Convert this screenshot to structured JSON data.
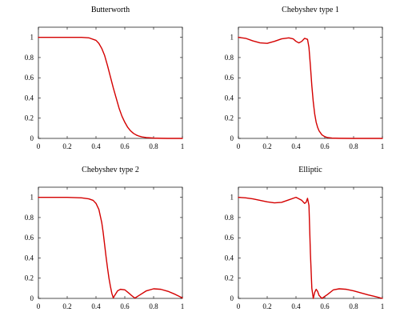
{
  "chart_data": [
    {
      "type": "line",
      "title": "Butterworth",
      "xlim": [
        0,
        1
      ],
      "ylim": [
        0,
        1.1
      ],
      "x_ticks": [
        "0",
        "0.2",
        "0.4",
        "0.6",
        "0.8",
        "1"
      ],
      "y_ticks": [
        "0",
        "0.2",
        "0.4",
        "0.6",
        "0.8",
        "1"
      ],
      "grid": false,
      "color": "#d40000",
      "x": [
        0,
        0.1,
        0.2,
        0.3,
        0.35,
        0.4,
        0.42,
        0.44,
        0.46,
        0.48,
        0.5,
        0.52,
        0.54,
        0.56,
        0.58,
        0.6,
        0.62,
        0.64,
        0.66,
        0.68,
        0.7,
        0.72,
        0.75,
        0.8,
        0.85,
        0.9,
        1.0
      ],
      "y": [
        1,
        1,
        1,
        1,
        0.995,
        0.97,
        0.94,
        0.89,
        0.82,
        0.72,
        0.61,
        0.5,
        0.4,
        0.3,
        0.22,
        0.16,
        0.11,
        0.075,
        0.05,
        0.033,
        0.022,
        0.014,
        0.008,
        0.003,
        0.001,
        0,
        0
      ]
    },
    {
      "type": "line",
      "title": "Chebyshev type 1",
      "xlim": [
        0,
        1
      ],
      "ylim": [
        0,
        1.1
      ],
      "x_ticks": [
        "0",
        "0.2",
        "0.4",
        "0.6",
        "0.8",
        "1"
      ],
      "y_ticks": [
        "0",
        "0.2",
        "0.4",
        "0.6",
        "0.8",
        "1"
      ],
      "grid": false,
      "color": "#d40000",
      "x": [
        0,
        0.05,
        0.1,
        0.15,
        0.2,
        0.25,
        0.3,
        0.35,
        0.38,
        0.4,
        0.42,
        0.44,
        0.46,
        0.48,
        0.49,
        0.5,
        0.51,
        0.52,
        0.53,
        0.54,
        0.55,
        0.56,
        0.58,
        0.6,
        0.62,
        0.65,
        0.7,
        0.8,
        1.0
      ],
      "y": [
        1,
        0.99,
        0.965,
        0.945,
        0.94,
        0.96,
        0.985,
        0.995,
        0.985,
        0.96,
        0.945,
        0.96,
        0.99,
        0.98,
        0.9,
        0.72,
        0.52,
        0.36,
        0.24,
        0.16,
        0.11,
        0.075,
        0.035,
        0.017,
        0.008,
        0.003,
        0.001,
        0,
        0
      ]
    },
    {
      "type": "line",
      "title": "Chebyshev type 2",
      "xlim": [
        0,
        1
      ],
      "ylim": [
        0,
        1.1
      ],
      "x_ticks": [
        "0",
        "0.2",
        "0.4",
        "0.6",
        "0.8",
        "1"
      ],
      "y_ticks": [
        "0",
        "0.2",
        "0.4",
        "0.6",
        "0.8",
        "1"
      ],
      "grid": false,
      "color": "#d40000",
      "x": [
        0,
        0.1,
        0.2,
        0.3,
        0.35,
        0.38,
        0.4,
        0.42,
        0.44,
        0.45,
        0.46,
        0.47,
        0.48,
        0.49,
        0.5,
        0.51,
        0.52,
        0.53,
        0.55,
        0.57,
        0.6,
        0.63,
        0.65,
        0.67,
        0.7,
        0.75,
        0.8,
        0.85,
        0.9,
        0.95,
        1.0
      ],
      "y": [
        1,
        1,
        1,
        0.995,
        0.985,
        0.97,
        0.94,
        0.88,
        0.75,
        0.65,
        0.53,
        0.41,
        0.3,
        0.2,
        0.12,
        0.05,
        0.005,
        0.03,
        0.075,
        0.09,
        0.085,
        0.05,
        0.025,
        0.003,
        0.03,
        0.075,
        0.095,
        0.09,
        0.07,
        0.04,
        0.005
      ]
    },
    {
      "type": "line",
      "title": "Elliptic",
      "xlim": [
        0,
        1
      ],
      "ylim": [
        0,
        1.1
      ],
      "x_ticks": [
        "0",
        "0.2",
        "0.4",
        "0.6",
        "0.8",
        "1"
      ],
      "y_ticks": [
        "0",
        "0.2",
        "0.4",
        "0.6",
        "0.8",
        "1"
      ],
      "grid": false,
      "color": "#d40000",
      "x": [
        0,
        0.05,
        0.1,
        0.15,
        0.2,
        0.25,
        0.3,
        0.35,
        0.4,
        0.44,
        0.46,
        0.47,
        0.48,
        0.49,
        0.5,
        0.51,
        0.52,
        0.53,
        0.54,
        0.55,
        0.56,
        0.58,
        0.62,
        0.66,
        0.7,
        0.75,
        0.8,
        0.85,
        0.9,
        0.95,
        1.0
      ],
      "y": [
        1,
        0.995,
        0.985,
        0.97,
        0.955,
        0.945,
        0.95,
        0.975,
        1.0,
        0.97,
        0.94,
        0.95,
        0.99,
        0.92,
        0.45,
        0.1,
        0.0,
        0.06,
        0.09,
        0.07,
        0.03,
        0.0,
        0.04,
        0.085,
        0.095,
        0.09,
        0.075,
        0.055,
        0.035,
        0.018,
        0.0
      ]
    }
  ]
}
